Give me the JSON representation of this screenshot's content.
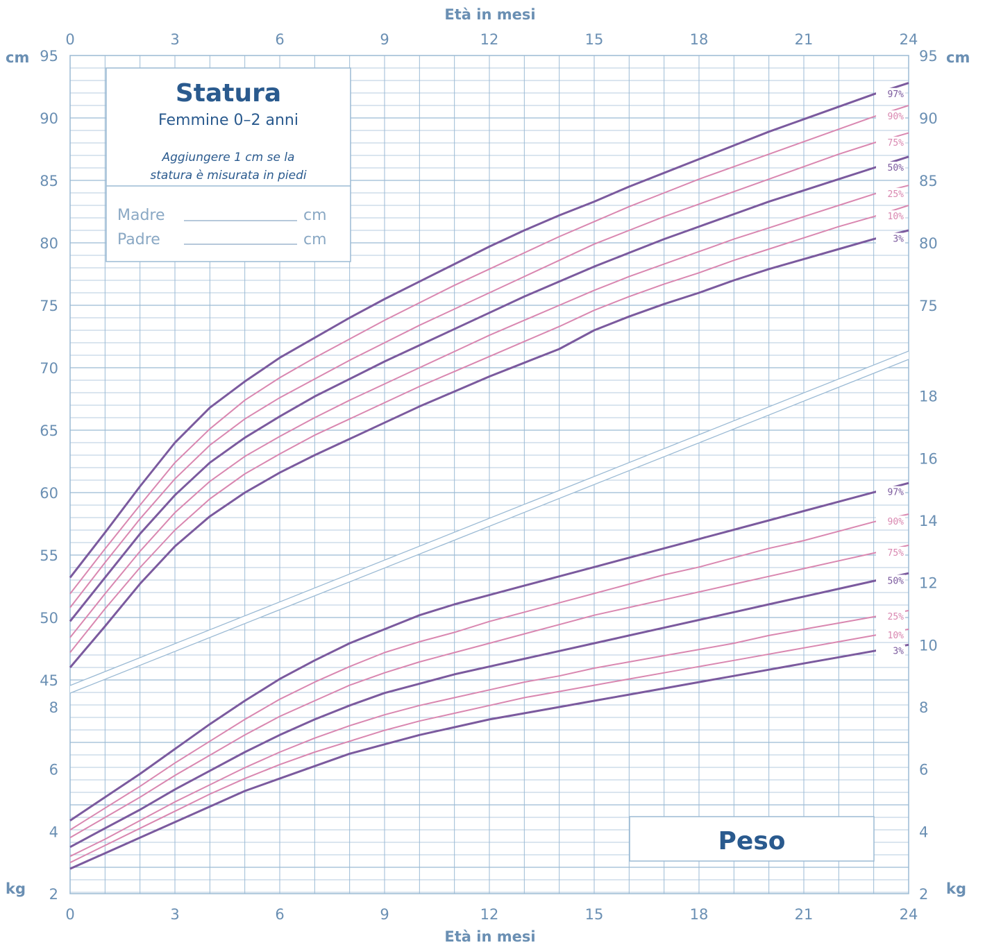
{
  "colors": {
    "grid": "#9bbad4",
    "axis_text": "#6a8fb3",
    "title": "#2a5a8e",
    "major_curve": "#7b5a9e",
    "minor_curve": "#d987b0",
    "label_major": "#7b5a9e",
    "label_minor": "#d987b0"
  },
  "axis": {
    "x_title_top": "Età in mesi",
    "x_title_bottom": "Età in mesi",
    "unit_cm_left": "cm",
    "unit_cm_right": "cm",
    "unit_kg_left": "kg",
    "unit_kg_right": "kg"
  },
  "info_box": {
    "title": "Statura",
    "subtitle": "Femmine 0–2 anni",
    "note_line1": "Aggiungere 1 cm se la",
    "note_line2": "statura è misurata in piedi",
    "mother_label": "Madre",
    "father_label": "Padre",
    "unit1": "cm",
    "unit2": "cm"
  },
  "weight_box": {
    "title": "Peso"
  },
  "chart_data": [
    {
      "type": "line",
      "title": "Statura",
      "xlabel": "Età in mesi",
      "ylabel": "cm",
      "xlim": [
        0,
        24
      ],
      "ylim": [
        45,
        95
      ],
      "x_ticks": [
        0,
        3,
        6,
        9,
        12,
        15,
        18,
        21,
        24
      ],
      "y_ticks_left": [
        45,
        50,
        55,
        60,
        65,
        70,
        75,
        80,
        85,
        90,
        95
      ],
      "y_ticks_right": [
        75,
        80,
        85,
        90,
        95
      ],
      "x": [
        0,
        1,
        2,
        3,
        4,
        5,
        6,
        7,
        8,
        9,
        10,
        11,
        12,
        13,
        14,
        15,
        16,
        17,
        18,
        19,
        20,
        21,
        22,
        23,
        24
      ],
      "series": [
        {
          "name": "3%",
          "major": true,
          "values": [
            46.0,
            49.3,
            52.7,
            55.7,
            58.1,
            60.0,
            61.6,
            63.0,
            64.3,
            65.6,
            66.9,
            68.1,
            69.3,
            70.4,
            71.5,
            73.0,
            74.1,
            75.1,
            76.0,
            77.0,
            77.9,
            78.7,
            79.5,
            80.3,
            81.0
          ]
        },
        {
          "name": "10%",
          "major": false,
          "values": [
            47.2,
            50.7,
            54.0,
            57.0,
            59.5,
            61.5,
            63.1,
            64.6,
            65.9,
            67.2,
            68.5,
            69.7,
            70.9,
            72.1,
            73.3,
            74.6,
            75.7,
            76.7,
            77.6,
            78.6,
            79.5,
            80.4,
            81.3,
            82.1,
            83.0
          ]
        },
        {
          "name": "25%",
          "major": false,
          "values": [
            48.4,
            51.9,
            55.3,
            58.4,
            60.9,
            62.9,
            64.5,
            66.0,
            67.4,
            68.7,
            70.0,
            71.3,
            72.6,
            73.8,
            75.0,
            76.2,
            77.3,
            78.3,
            79.3,
            80.3,
            81.2,
            82.1,
            83.0,
            83.9,
            84.6
          ]
        },
        {
          "name": "50%",
          "major": true,
          "values": [
            49.7,
            53.2,
            56.7,
            59.8,
            62.4,
            64.4,
            66.1,
            67.7,
            69.1,
            70.5,
            71.8,
            73.1,
            74.4,
            75.7,
            76.9,
            78.1,
            79.2,
            80.3,
            81.3,
            82.3,
            83.3,
            84.2,
            85.1,
            86.0,
            86.9
          ]
        },
        {
          "name": "75%",
          "major": false,
          "values": [
            50.8,
            54.4,
            57.9,
            61.1,
            63.8,
            65.9,
            67.6,
            69.1,
            70.6,
            72.0,
            73.4,
            74.7,
            76.0,
            77.3,
            78.6,
            79.9,
            81.0,
            82.1,
            83.1,
            84.1,
            85.1,
            86.1,
            87.1,
            88.0,
            88.8
          ]
        },
        {
          "name": "90%",
          "major": false,
          "values": [
            51.9,
            55.5,
            59.0,
            62.4,
            65.1,
            67.4,
            69.2,
            70.8,
            72.3,
            73.8,
            75.2,
            76.6,
            77.9,
            79.2,
            80.5,
            81.7,
            82.9,
            84.0,
            85.1,
            86.1,
            87.1,
            88.1,
            89.1,
            90.1,
            91.0
          ]
        },
        {
          "name": "97%",
          "major": true,
          "values": [
            53.2,
            56.8,
            60.5,
            64.0,
            66.8,
            68.9,
            70.8,
            72.4,
            74.0,
            75.5,
            76.9,
            78.3,
            79.7,
            81.0,
            82.2,
            83.3,
            84.5,
            85.6,
            86.7,
            87.8,
            88.9,
            89.9,
            90.9,
            91.9,
            92.8
          ]
        }
      ]
    },
    {
      "type": "line",
      "title": "Peso",
      "xlabel": "Età in mesi",
      "ylabel": "kg",
      "xlim": [
        0,
        24
      ],
      "ylim": [
        2,
        18
      ],
      "x_ticks": [
        0,
        3,
        6,
        9,
        12,
        15,
        18,
        21,
        24
      ],
      "y_ticks_left": [
        2,
        4,
        6,
        8
      ],
      "y_ticks_right": [
        2,
        4,
        6,
        8,
        10,
        12,
        14,
        16,
        18
      ],
      "x": [
        0,
        1,
        2,
        3,
        4,
        5,
        6,
        7,
        8,
        9,
        10,
        11,
        12,
        13,
        14,
        15,
        16,
        17,
        18,
        19,
        20,
        21,
        22,
        23,
        24
      ],
      "series": [
        {
          "name": "3%",
          "major": true,
          "values": [
            2.8,
            3.3,
            3.8,
            4.3,
            4.8,
            5.3,
            5.7,
            6.1,
            6.5,
            6.8,
            7.1,
            7.35,
            7.6,
            7.8,
            8.0,
            8.2,
            8.4,
            8.6,
            8.8,
            9.0,
            9.2,
            9.4,
            9.6,
            9.8,
            10.0
          ]
        },
        {
          "name": "10%",
          "major": false,
          "values": [
            3.0,
            3.55,
            4.1,
            4.65,
            5.2,
            5.7,
            6.15,
            6.55,
            6.9,
            7.25,
            7.55,
            7.8,
            8.05,
            8.3,
            8.5,
            8.7,
            8.9,
            9.1,
            9.3,
            9.5,
            9.7,
            9.9,
            10.1,
            10.3,
            10.5
          ]
        },
        {
          "name": "25%",
          "major": false,
          "values": [
            3.2,
            3.75,
            4.35,
            4.95,
            5.5,
            6.05,
            6.55,
            7.0,
            7.4,
            7.75,
            8.05,
            8.3,
            8.55,
            8.8,
            9.0,
            9.25,
            9.45,
            9.65,
            9.85,
            10.05,
            10.3,
            10.5,
            10.7,
            10.9,
            11.1
          ]
        },
        {
          "name": "50%",
          "major": true,
          "values": [
            3.5,
            4.1,
            4.7,
            5.35,
            5.95,
            6.55,
            7.1,
            7.6,
            8.05,
            8.45,
            8.75,
            9.05,
            9.3,
            9.55,
            9.8,
            10.05,
            10.3,
            10.55,
            10.8,
            11.05,
            11.3,
            11.55,
            11.8,
            12.05,
            12.3
          ]
        },
        {
          "name": "75%",
          "major": false,
          "values": [
            3.8,
            4.45,
            5.1,
            5.8,
            6.45,
            7.1,
            7.7,
            8.2,
            8.7,
            9.1,
            9.45,
            9.75,
            10.05,
            10.35,
            10.65,
            10.95,
            11.2,
            11.45,
            11.7,
            11.95,
            12.2,
            12.45,
            12.7,
            12.95,
            13.2
          ]
        },
        {
          "name": "90%",
          "major": false,
          "values": [
            4.05,
            4.75,
            5.45,
            6.2,
            6.9,
            7.6,
            8.25,
            8.8,
            9.3,
            9.75,
            10.1,
            10.4,
            10.75,
            11.05,
            11.35,
            11.65,
            11.95,
            12.25,
            12.5,
            12.8,
            13.1,
            13.35,
            13.65,
            13.95,
            14.2
          ]
        },
        {
          "name": "97%",
          "major": true,
          "values": [
            4.35,
            5.1,
            5.85,
            6.65,
            7.45,
            8.2,
            8.9,
            9.5,
            10.05,
            10.5,
            10.95,
            11.3,
            11.6,
            11.9,
            12.2,
            12.5,
            12.8,
            13.1,
            13.4,
            13.7,
            14.0,
            14.3,
            14.6,
            14.9,
            15.2
          ]
        }
      ]
    }
  ]
}
